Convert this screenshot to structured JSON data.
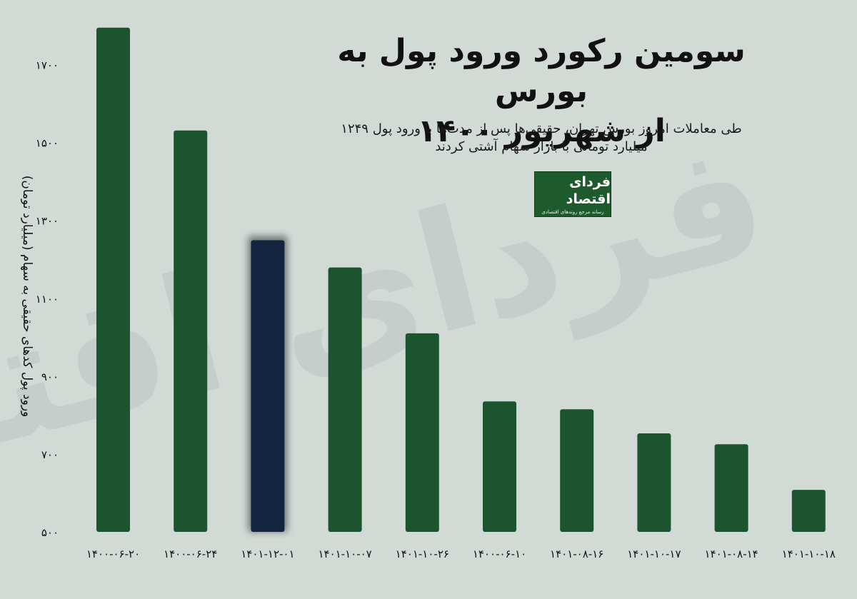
{
  "header": {
    "title_line1": "سومین رکورد ورود پول به بورس",
    "title_line2": "از شهریور ۱۴۰۰",
    "subtitle_line1": "طی معاملات امروز بورس تهران، حقیقی‌ها پس از مدت‌ها با ورود پول ۱۲۴۹",
    "subtitle_line2": "میلیارد تومانی با بازار سهام آشتی کردند"
  },
  "logo": {
    "name": "فردای اقتصاد",
    "tagline": "رسانه مرجع روندهای اقتصادی"
  },
  "watermark": "فردای اقتصاد",
  "chart_data": {
    "type": "bar",
    "title": "سومین رکورد ورود پول به بورس از شهریور ۱۴۰۰",
    "ylabel": "ورود پول کدهای حقیقی به سهام (میلیارد تومان)",
    "xlabel": "",
    "ylim": [
      500,
      1800
    ],
    "yticks": [
      500,
      700,
      900,
      1100,
      1300,
      1500,
      1700
    ],
    "ytick_labels": [
      "۵۰۰",
      "۷۰۰",
      "۹۰۰",
      "۱۱۰۰",
      "۱۳۰۰",
      "۱۵۰۰",
      "۱۷۰۰"
    ],
    "grid": false,
    "categories": [
      "۱۴۰۰-۰۶-۲۰",
      "۱۴۰۰-۰۶-۲۴",
      "۱۴۰۱-۱۲-۰۱",
      "۱۴۰۱-۱۰-۰۷",
      "۱۴۰۱-۱۰-۲۶",
      "۱۴۰۰-۰۶-۱۰",
      "۱۴۰۱-۰۸-۱۶",
      "۱۴۰۱-۱۰-۱۷",
      "۱۴۰۱-۰۸-۱۴",
      "۱۴۰۱-۱۰-۱۸"
    ],
    "values": [
      1795,
      1531,
      1249,
      1179,
      1010,
      835,
      815,
      753,
      725,
      608
    ],
    "highlight_index": 2,
    "colors": {
      "bar": "#1d5430",
      "highlight": "#13253f"
    }
  }
}
